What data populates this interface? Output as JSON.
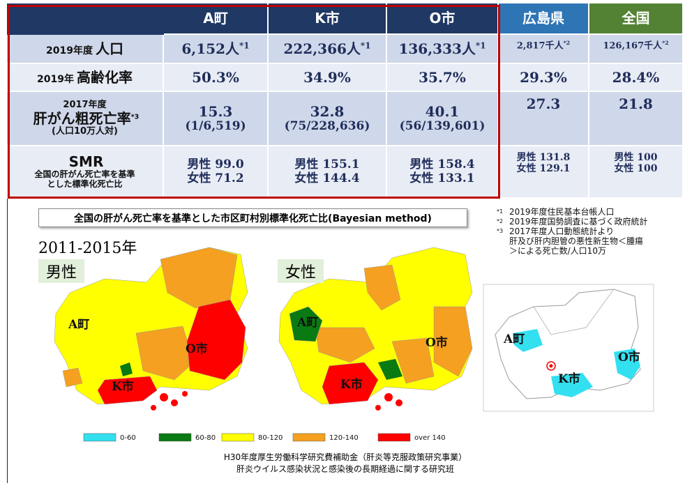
{
  "table": {
    "header": [
      "A町",
      "K市",
      "O市",
      "広島県",
      "全国"
    ],
    "rows": [
      {
        "label": {
          "prefix": "2019年度",
          "big": "人口"
        },
        "cells": [
          {
            "text": "6,152人",
            "sup": "*1"
          },
          {
            "text": "222,366人",
            "sup": "*1"
          },
          {
            "text": "136,333人",
            "sup": "*1"
          },
          {
            "text": "2,817千人",
            "sup": "*2"
          },
          {
            "text": "126,167千人",
            "sup": "*2"
          }
        ]
      },
      {
        "label": {
          "prefix": "2019年",
          "big": "高齢化率"
        },
        "cells": [
          {
            "text": "50.3%"
          },
          {
            "text": "34.9%"
          },
          {
            "text": "35.7%"
          },
          {
            "text": "29.3%"
          },
          {
            "text": "28.4%"
          }
        ]
      },
      {
        "label": {
          "heading": "2017年度",
          "big": "肝がん粗死亡率",
          "sup": "*3",
          "lines": [
            "(人口10万人対)"
          ]
        },
        "cells": [
          {
            "lines": [
              "15.3",
              "(1/6,519)"
            ]
          },
          {
            "lines": [
              "32.8",
              "(75/228,636)"
            ]
          },
          {
            "lines": [
              "40.1",
              "(56/139,601)"
            ]
          },
          {
            "lines": [
              "27.3"
            ]
          },
          {
            "lines": [
              "21.8"
            ]
          }
        ]
      },
      {
        "label": {
          "big": "SMR",
          "lines": [
            "全国の肝がん死亡率を基準",
            "とした標準化死亡比"
          ]
        },
        "cells": [
          {
            "lines": [
              "男性 99.0",
              "女性 71.2"
            ]
          },
          {
            "lines": [
              "男性 155.1",
              "女性 144.4"
            ]
          },
          {
            "lines": [
              "男性 158.4",
              "女性 133.1"
            ]
          },
          {
            "lines": [
              "男性 131.8",
              "女性 129.1"
            ]
          },
          {
            "lines": [
              "男性 100",
              "女性 100"
            ]
          }
        ]
      }
    ]
  },
  "maps": {
    "title": "全国の肝がん死亡率を基準とした市区町村別標準化死亡比(Bayesian method)",
    "period": "2011-2015年",
    "male": {
      "label": "男性",
      "places": [
        "A町",
        "O市",
        "K市"
      ]
    },
    "female": {
      "label": "女性",
      "places": [
        "A町",
        "O市",
        "K市"
      ]
    },
    "inset": {
      "places": [
        "A町",
        "O市",
        "K市"
      ]
    },
    "legend": [
      {
        "label": "0-60",
        "color": "#33e0f0"
      },
      {
        "label": "60-80",
        "color": "#0a7a12"
      },
      {
        "label": "80-120",
        "color": "#ffff00"
      },
      {
        "label": "120-140",
        "color": "#f5a020"
      },
      {
        "label": "over 140",
        "color": "#ff0000"
      }
    ]
  },
  "footnotes": [
    {
      "mark": "*1",
      "lines": [
        "2019年度住民基本台帳人口"
      ]
    },
    {
      "mark": "*2",
      "lines": [
        "2019年度国勢調査に基づく政府統計"
      ]
    },
    {
      "mark": "*3",
      "lines": [
        "2017年度人口動態統計より",
        "肝及び肝内胆管の悪性新生物＜腫瘍",
        "＞による死亡数/人口10万"
      ]
    }
  ],
  "source": [
    "H30年度厚生労働科学研究費補助金（肝炎等克服政策研究事業）",
    "肝炎ウイルス感染状況と感染後の長期経過に関する研究班"
  ]
}
